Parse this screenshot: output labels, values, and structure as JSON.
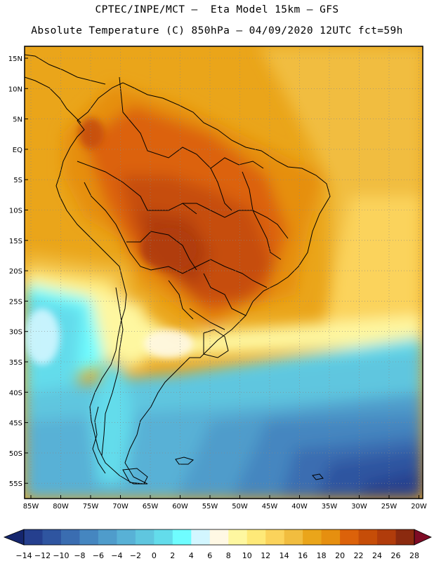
{
  "header": {
    "line1": "CPTEC/INPE/MCT –  Eta Model 15km – GFS",
    "line2": "Absolute Temperature (C) 850hPa – 04/09/2020 12UTC fct=59h"
  },
  "axes": {
    "lat_labels": [
      "15N",
      "10N",
      "5N",
      "EQ",
      "5S",
      "10S",
      "15S",
      "20S",
      "25S",
      "30S",
      "35S",
      "40S",
      "45S",
      "50S",
      "55S"
    ],
    "lon_labels": [
      "85W",
      "80W",
      "75W",
      "70W",
      "65W",
      "60W",
      "55W",
      "50W",
      "45W",
      "40W",
      "35W",
      "30W",
      "25W",
      "20W"
    ]
  },
  "colorbar": {
    "labels": [
      "-14",
      "-12",
      "-10",
      "-8",
      "-6",
      "-4",
      "-2",
      "0",
      "2",
      "4",
      "6",
      "8",
      "10",
      "12",
      "14",
      "16",
      "18",
      "20",
      "22",
      "24",
      "26",
      "28"
    ],
    "colors": [
      "#253f8e",
      "#2f55a0",
      "#3a6db1",
      "#4586c0",
      "#4f9ccb",
      "#58b1d6",
      "#5fc6df",
      "#63dceb",
      "#6ffdff",
      "#d2f6ff",
      "#fff8e4",
      "#fef7a0",
      "#fee978",
      "#fbd35b",
      "#f1bd3f",
      "#eaa51a",
      "#e68f0f",
      "#dc620a",
      "#c64d08",
      "#b13c0b",
      "#8b2a0f"
    ],
    "low_color": "#15266e",
    "high_color": "#7e0b25"
  }
}
